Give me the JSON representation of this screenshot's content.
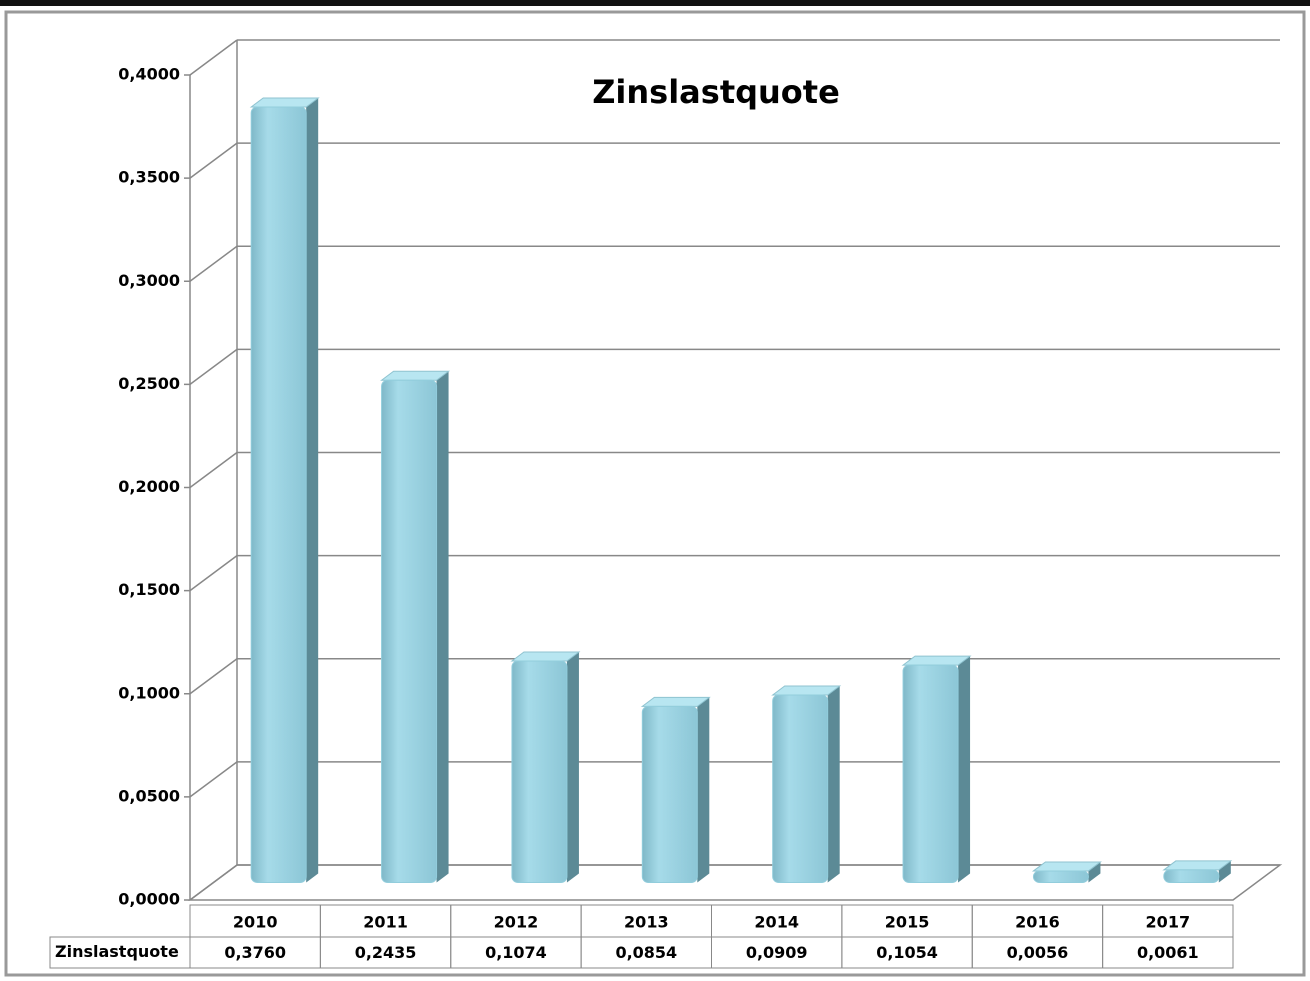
{
  "chart_data": {
    "type": "bar3d",
    "title": "Zinslastquote",
    "categories": [
      "2010",
      "2011",
      "2012",
      "2013",
      "2014",
      "2015",
      "2016",
      "2017"
    ],
    "series": [
      {
        "name": "Zinslastquote",
        "color": "#92cddc",
        "values": [
          0.376,
          0.2435,
          0.1074,
          0.0854,
          0.0909,
          0.1054,
          0.0056,
          0.0061
        ],
        "value_labels": [
          "0,3760",
          "0,2435",
          "0,1074",
          "0,0854",
          "0,0909",
          "0,1054",
          "0,0056",
          "0,0061"
        ]
      }
    ],
    "ylim": [
      0,
      0.4
    ],
    "yticks": [
      {
        "value": 0,
        "label": "0,0000"
      },
      {
        "value": 0.05,
        "label": "0,0500"
      },
      {
        "value": 0.1,
        "label": "0,1000"
      },
      {
        "value": 0.15,
        "label": "0,1500"
      },
      {
        "value": 0.2,
        "label": "0,2000"
      },
      {
        "value": 0.25,
        "label": "0,2500"
      },
      {
        "value": 0.3,
        "label": "0,3000"
      },
      {
        "value": 0.35,
        "label": "0,3500"
      },
      {
        "value": 0.4,
        "label": "0,4000"
      }
    ],
    "grid": true,
    "data_table": true
  }
}
